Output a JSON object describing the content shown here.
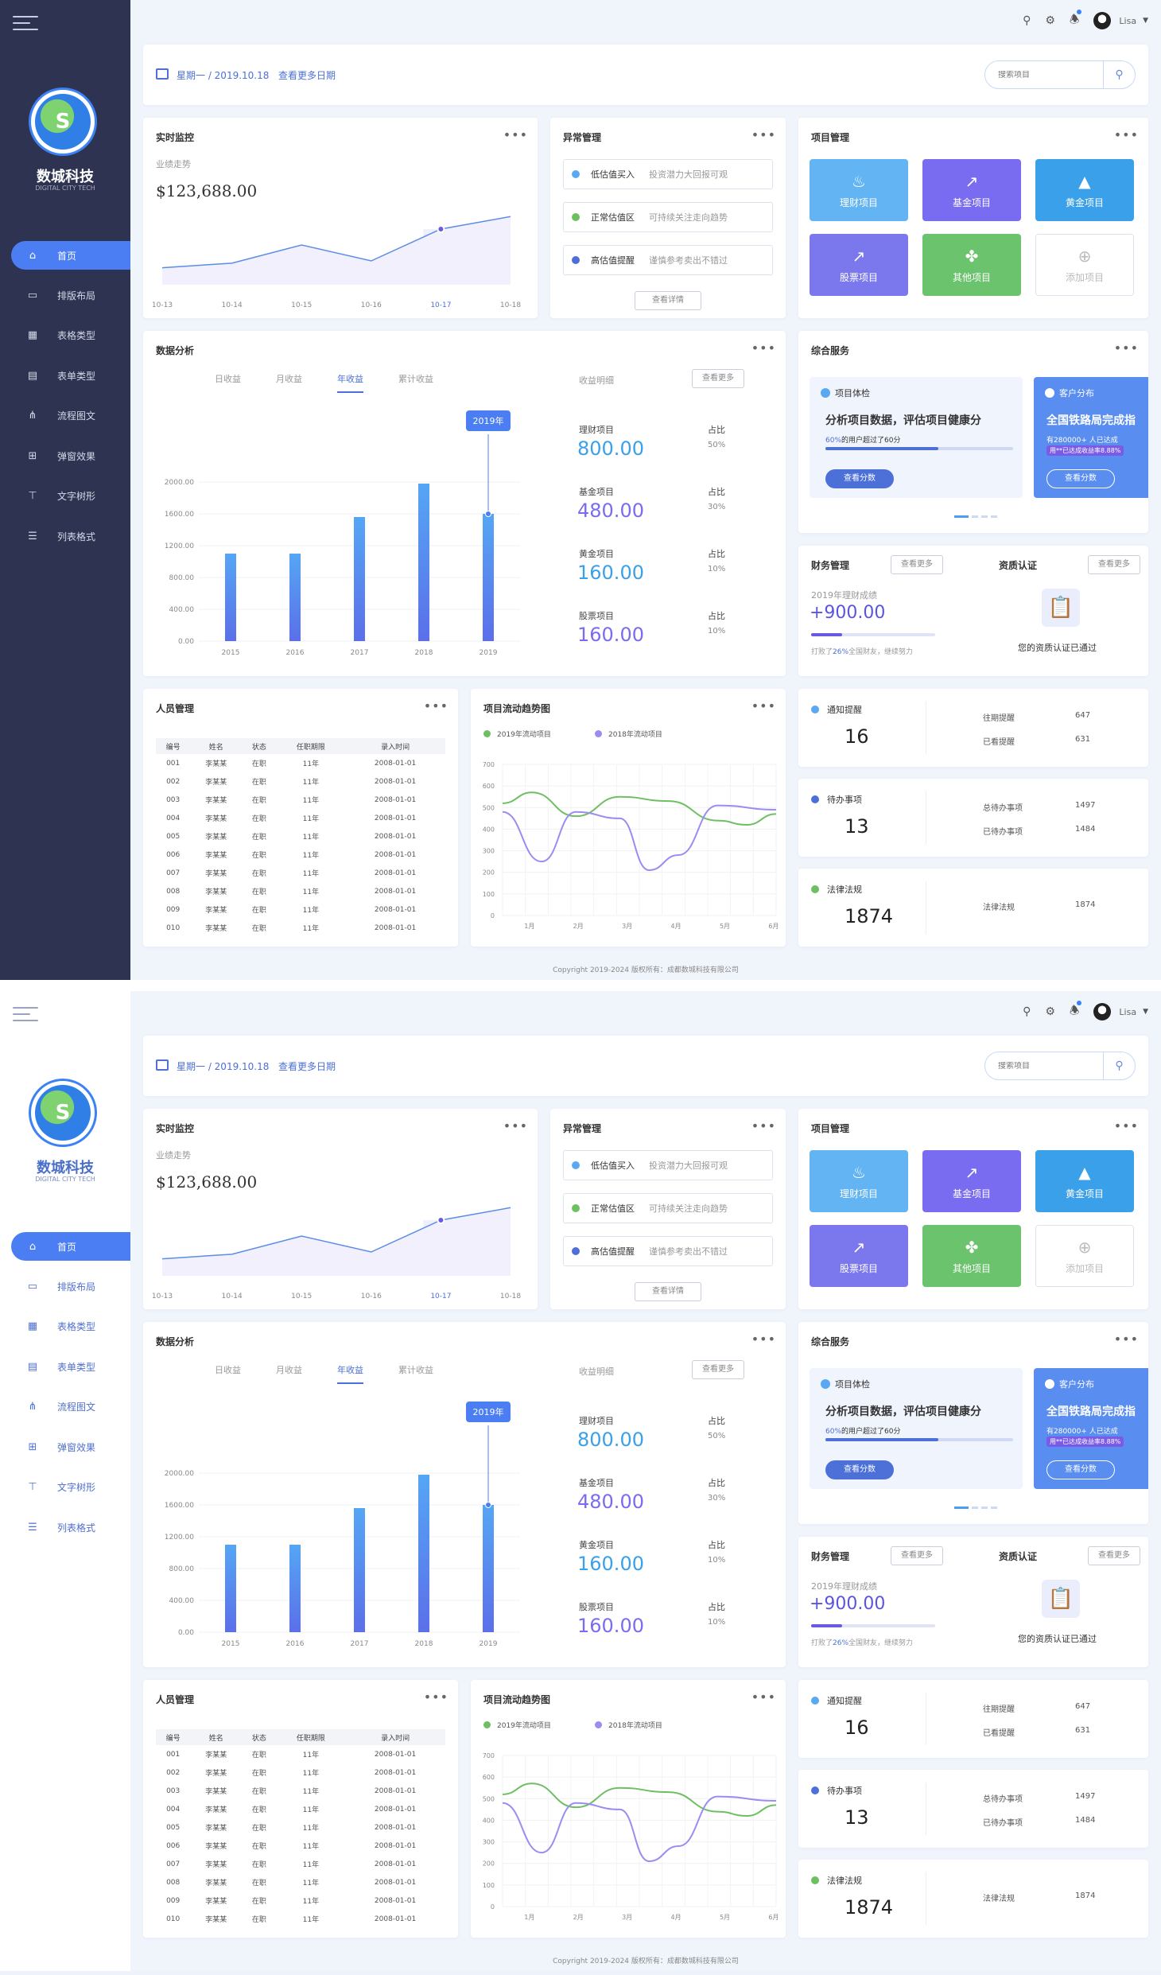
{
  "brand": {
    "name": "数城科技",
    "subtitle": "DIGITAL CITY TECH"
  },
  "nav": [
    {
      "label": "首页",
      "icon": "home-icon",
      "glyph": "⌂",
      "active": true
    },
    {
      "label": "排版布局",
      "icon": "layout-icon",
      "glyph": "▭"
    },
    {
      "label": "表格类型",
      "icon": "table-icon",
      "glyph": "▦"
    },
    {
      "label": "表单类型",
      "icon": "form-icon",
      "glyph": "▤"
    },
    {
      "label": "流程图文",
      "icon": "flow-icon",
      "glyph": "⋔"
    },
    {
      "label": "弹窗效果",
      "icon": "popup-icon",
      "glyph": "⊞"
    },
    {
      "label": "文字树形",
      "icon": "tree-icon",
      "glyph": "⊤"
    },
    {
      "label": "列表格式",
      "icon": "list-icon",
      "glyph": "☰"
    }
  ],
  "topbar": {
    "user": "Lisa"
  },
  "datebar": {
    "date": "星期一 / 2019.10.18",
    "more": "查看更多日期",
    "search_placeholder": "搜索项目"
  },
  "monitor": {
    "title": "实时监控",
    "subtitle": "业绩走势",
    "amount": "$123,688.00",
    "x": [
      "10-13",
      "10-14",
      "10-15",
      "10-16",
      "10-17",
      "10-18"
    ],
    "values": [
      30,
      38,
      70,
      42,
      98,
      120
    ],
    "highlight": 4
  },
  "anomaly": {
    "title": "异常管理",
    "items": [
      {
        "label": "低估值买入",
        "desc": "投资潜力大回报可观",
        "color": "#5aa9f0"
      },
      {
        "label": "正常估值区",
        "desc": "可持续关注走向趋势",
        "color": "#6dbf62"
      },
      {
        "label": "高估值提醒",
        "desc": "谨慎参考卖出不错过",
        "color": "#4c6fd8"
      }
    ],
    "button": "查看详情"
  },
  "projects": {
    "title": "项目管理",
    "tiles": [
      {
        "label": "理财项目",
        "color": "#63b4f2",
        "icon": "wallet-icon",
        "glyph": "♨"
      },
      {
        "label": "基金项目",
        "color": "#7a6cf0",
        "icon": "chart-icon",
        "glyph": "↗"
      },
      {
        "label": "黄金项目",
        "color": "#3aa0ea",
        "icon": "gold-icon",
        "glyph": "▲"
      },
      {
        "label": "股票项目",
        "color": "#7b78ee",
        "icon": "stock-icon",
        "glyph": "↗"
      },
      {
        "label": "其他项目",
        "color": "#6cc36e",
        "icon": "clover-icon",
        "glyph": "✤"
      },
      {
        "label": "添加项目",
        "color": "",
        "icon": "add-icon",
        "glyph": "⊕"
      }
    ]
  },
  "analysis": {
    "title": "数据分析",
    "tabs": [
      "日收益",
      "月收益",
      "年收益",
      "累计收益"
    ],
    "active_tab": 2,
    "detail_title": "收益明细",
    "more": "查看更多",
    "tooltip": "2019年",
    "details": [
      {
        "label": "理财项目",
        "value": "800.00",
        "ratio_label": "占比",
        "ratio": "50%",
        "color": "#3aa0ea"
      },
      {
        "label": "基金项目",
        "value": "480.00",
        "ratio_label": "占比",
        "ratio": "30%",
        "color": "#7a6cf0"
      },
      {
        "label": "黄金项目",
        "value": "160.00",
        "ratio_label": "占比",
        "ratio": "10%",
        "color": "#3aa0ea"
      },
      {
        "label": "股票项目",
        "value": "160.00",
        "ratio_label": "占比",
        "ratio": "10%",
        "color": "#7a6cf0"
      }
    ]
  },
  "chart_data": [
    {
      "type": "bar",
      "categories": [
        "2015",
        "2016",
        "2017",
        "2018",
        "2019"
      ],
      "values": [
        1100,
        1100,
        1560,
        1980,
        1600
      ],
      "yticks": [
        "0.00",
        "400.00",
        "800.00",
        "1200.00",
        "1600.00",
        "2000.00"
      ],
      "ylim": [
        0,
        2000
      ],
      "grid": true
    },
    {
      "type": "line",
      "title": "项目流动趋势图",
      "x": [
        "1月",
        "2月",
        "3月",
        "4月",
        "5月",
        "6月"
      ],
      "yticks": [
        "0",
        "100",
        "200",
        "300",
        "400",
        "500",
        "600",
        "700"
      ],
      "ylim": [
        0,
        700
      ],
      "series": [
        {
          "name": "2019年流动项目",
          "color": "#6dbf62",
          "points": [
            [
              0,
              520
            ],
            [
              0.6,
              570
            ],
            [
              1.5,
              460
            ],
            [
              2.4,
              550
            ],
            [
              3.4,
              530
            ],
            [
              4.4,
              440
            ],
            [
              5.0,
              420
            ],
            [
              5.6,
              470
            ]
          ]
        },
        {
          "name": "2018年流动项目",
          "color": "#9b8cf0",
          "points": [
            [
              0,
              480
            ],
            [
              0.8,
              250
            ],
            [
              1.5,
              480
            ],
            [
              2.4,
              450
            ],
            [
              3.0,
              210
            ],
            [
              3.6,
              280
            ],
            [
              4.4,
              510
            ],
            [
              5.6,
              490
            ]
          ]
        }
      ]
    }
  ],
  "service": {
    "title": "综合服务",
    "card1": {
      "tag": "项目体检",
      "headline": "分析项目数据，评估项目健康分",
      "sub_pct": "60%",
      "sub": "的用户超过了60分",
      "button": "查看分数"
    },
    "card2": {
      "tag": "客户分布",
      "headline": "全国铁路局完成指",
      "sub": "有280000+ 人已达成",
      "chip": "用**已达成收益率8.88%",
      "button": "查看分数"
    }
  },
  "finance": {
    "title": "财务管理",
    "more": "查看更多",
    "label": "2019年理财成绩",
    "value": "+900.00",
    "progress": 0.25,
    "note_pre": "打败了",
    "note_pct": "26%",
    "note_post": "全国财友，继续努力"
  },
  "cert": {
    "title": "资质认证",
    "more": "查看更多",
    "text": "您的资质认证已通过"
  },
  "staff": {
    "title": "人员管理",
    "headers": [
      "编号",
      "姓名",
      "状态",
      "任职期限",
      "录入时间"
    ],
    "rows": [
      [
        "001",
        "李某某",
        "在职",
        "11年",
        "2008-01-01"
      ],
      [
        "002",
        "李某某",
        "在职",
        "11年",
        "2008-01-01"
      ],
      [
        "003",
        "李某某",
        "在职",
        "11年",
        "2008-01-01"
      ],
      [
        "004",
        "李某某",
        "在职",
        "11年",
        "2008-01-01"
      ],
      [
        "005",
        "李某某",
        "在职",
        "11年",
        "2008-01-01"
      ],
      [
        "006",
        "李某某",
        "在职",
        "11年",
        "2008-01-01"
      ],
      [
        "007",
        "李某某",
        "在职",
        "11年",
        "2008-01-01"
      ],
      [
        "008",
        "李某某",
        "在职",
        "11年",
        "2008-01-01"
      ],
      [
        "009",
        "李某某",
        "在职",
        "11年",
        "2008-01-01"
      ],
      [
        "010",
        "李某某",
        "在职",
        "11年",
        "2008-01-01"
      ]
    ]
  },
  "notices": [
    {
      "title": "通知提醒",
      "value": "16",
      "color": "#5aa9f0",
      "rows": [
        [
          "往期提醒",
          "647"
        ],
        [
          "已看提醒",
          "631"
        ]
      ]
    },
    {
      "title": "待办事项",
      "value": "13",
      "color": "#4c6fd8",
      "rows": [
        [
          "总待办事项",
          "1497"
        ],
        [
          "已待办事项",
          "1484"
        ]
      ]
    },
    {
      "title": "法律法规",
      "value": "1874",
      "color": "#6dbf62",
      "rows": [
        [
          "法律法规",
          "1874"
        ]
      ]
    }
  ],
  "footer": "Copyright 2019-2024 版权所有：成都数城科技有限公司"
}
